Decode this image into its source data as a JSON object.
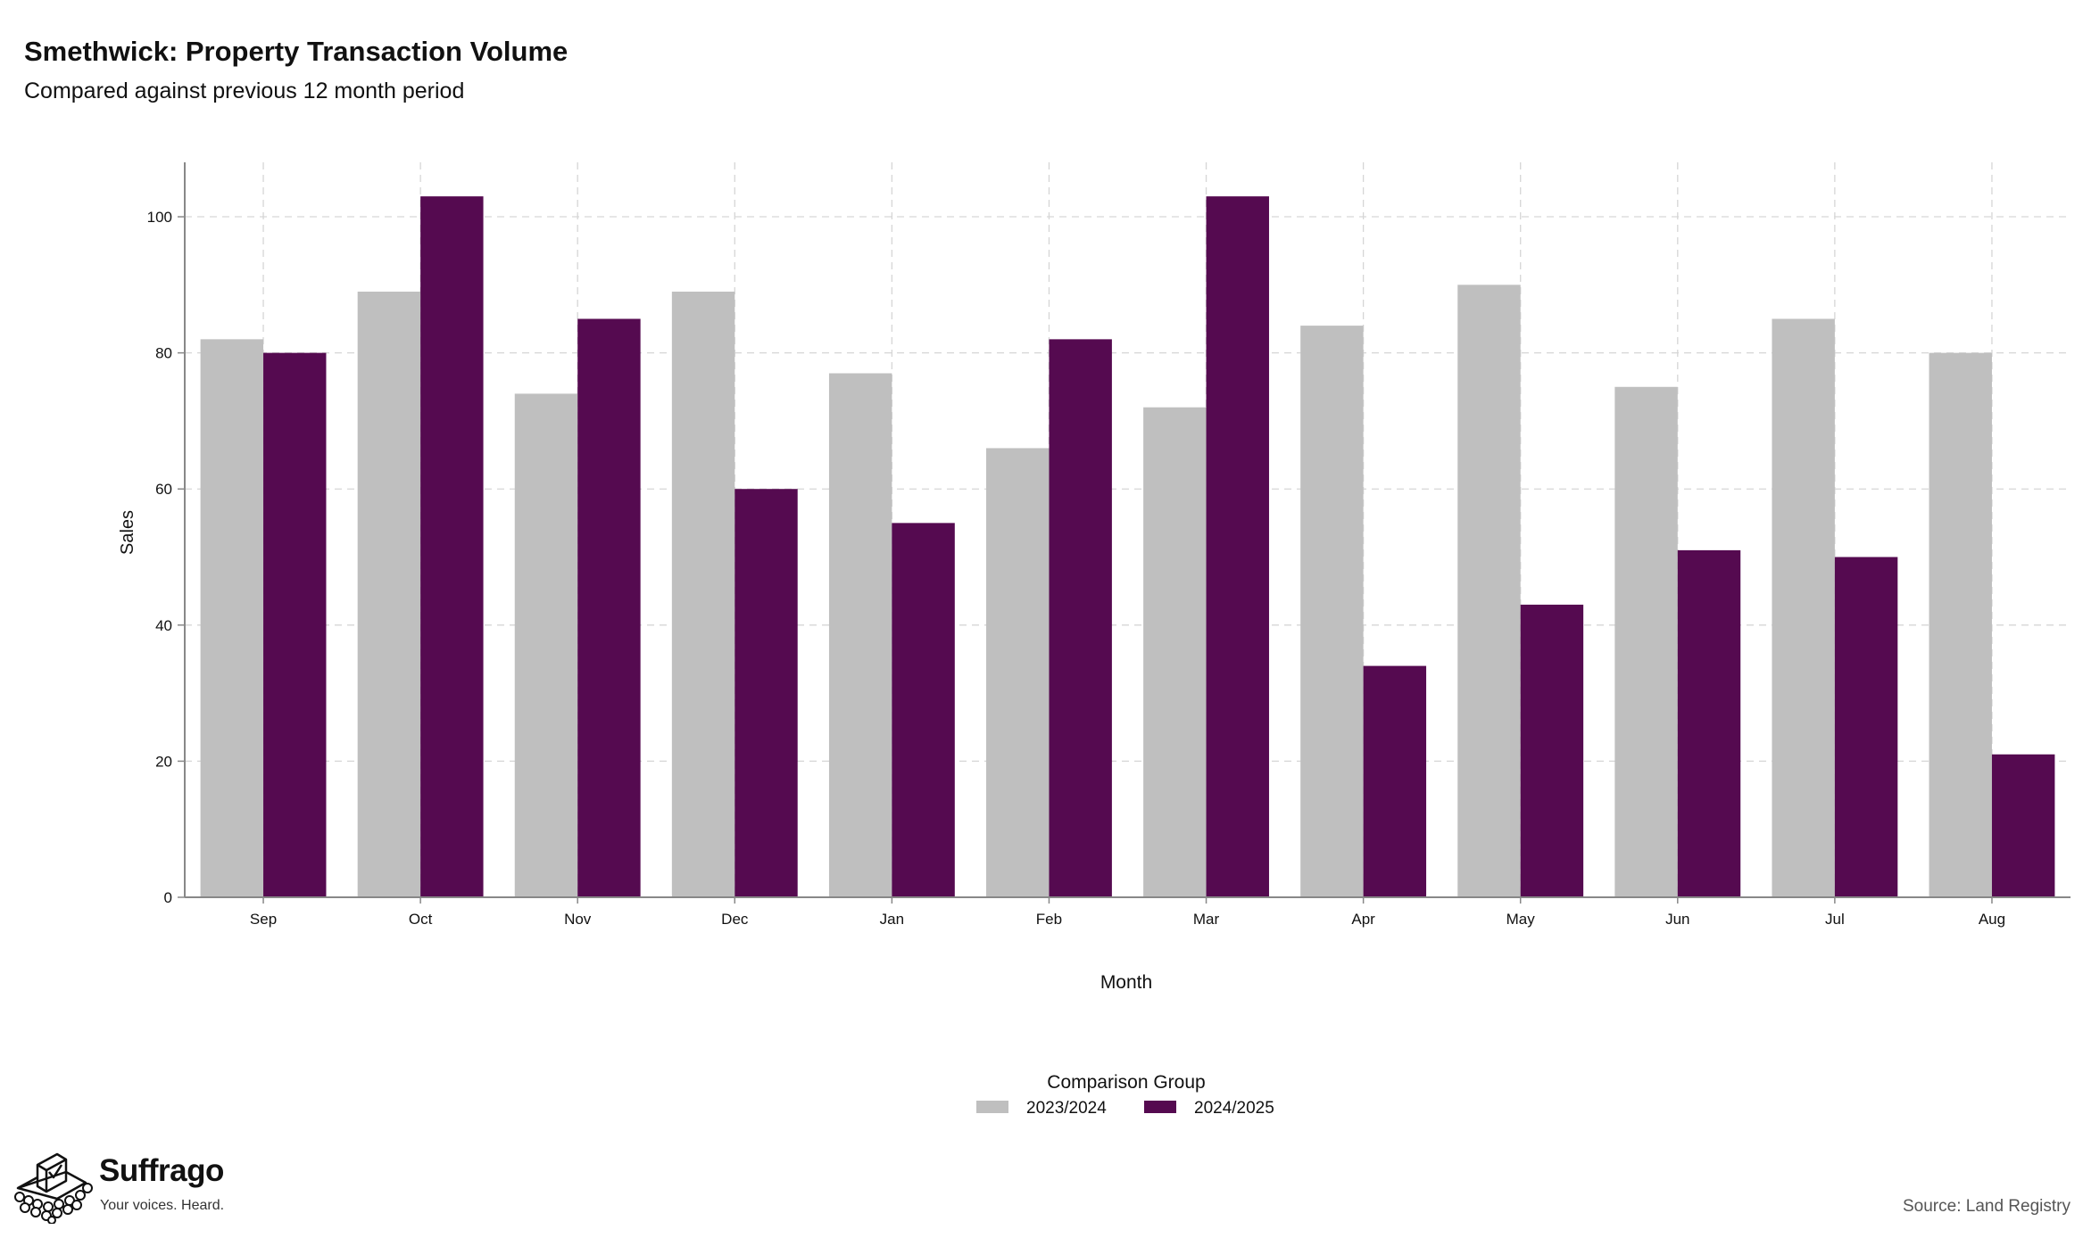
{
  "header": {
    "title": "Smethwick: Property Transaction Volume",
    "subtitle": "Compared against previous 12 month period"
  },
  "chart_data": {
    "type": "bar",
    "title": "Smethwick: Property Transaction Volume",
    "subtitle": "Compared against previous 12 month period",
    "xlabel": "Month",
    "ylabel": "Sales",
    "categories": [
      "Sep",
      "Oct",
      "Nov",
      "Dec",
      "Jan",
      "Feb",
      "Mar",
      "Apr",
      "May",
      "Jun",
      "Jul",
      "Aug"
    ],
    "series": [
      {
        "name": "2023/2024",
        "color": "#bfbfbf",
        "values": [
          82,
          89,
          74,
          89,
          77,
          66,
          72,
          84,
          90,
          75,
          85,
          80
        ]
      },
      {
        "name": "2024/2025",
        "color": "#550a50",
        "values": [
          80,
          103,
          85,
          60,
          55,
          82,
          103,
          34,
          43,
          51,
          50,
          21
        ]
      }
    ],
    "ylim": [
      0,
      108
    ],
    "yticks": [
      0,
      20,
      40,
      60,
      80,
      100
    ],
    "grid": true,
    "legend": {
      "title": "Comparison Group",
      "position": "bottom-center"
    }
  },
  "footer": {
    "brand_name": "Suffrago",
    "brand_tagline": "Your voices. Heard.",
    "source": "Source: Land Registry",
    "logo_icon": "ballot-box-icon"
  }
}
